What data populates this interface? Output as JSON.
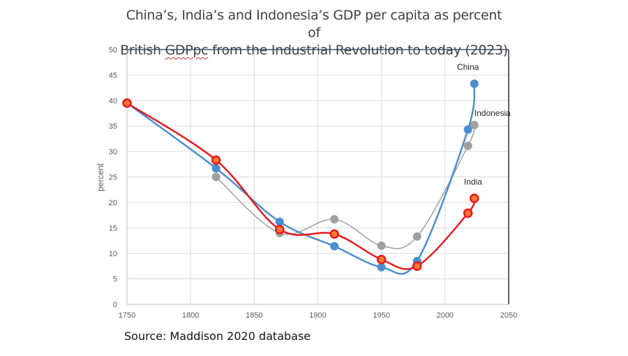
{
  "chart_data": {
    "type": "line",
    "title_line1": "China’s, India’s and Indonesia’s GDP per capita as percent of",
    "title_line2_pre": "British ",
    "title_line2_underlined": "GDPpc",
    "title_line2_post": " from the Industrial Revolution to today (2023)",
    "xlabel": "",
    "ylabel": "percent",
    "xlim": [
      1750,
      2050
    ],
    "ylim": [
      0,
      50
    ],
    "xticks": [
      1750,
      1800,
      1850,
      1900,
      1950,
      2000,
      2050
    ],
    "yticks": [
      0,
      5,
      10,
      15,
      20,
      25,
      30,
      35,
      40,
      45,
      50
    ],
    "grid": true,
    "legend": "none (direct labels at top-right)",
    "series": [
      {
        "name": "China",
        "color": "#4a8fcf",
        "x": [
          1750,
          1820,
          1870,
          1913,
          1950,
          1978,
          2018,
          2023
        ],
        "values": [
          39.5,
          26.7,
          16.2,
          11.4,
          7.3,
          8.5,
          34.3,
          43.3
        ]
      },
      {
        "name": "Indonesia",
        "color": "#a0a0a0",
        "x": [
          1820,
          1870,
          1913,
          1950,
          1978,
          2018,
          2023
        ],
        "values": [
          25.0,
          14.0,
          16.7,
          11.5,
          13.3,
          31.1,
          35.2
        ]
      },
      {
        "name": "India",
        "color": "#e8191e",
        "x": [
          1750,
          1820,
          1870,
          1913,
          1950,
          1978,
          2018,
          2023
        ],
        "values": [
          39.5,
          28.3,
          14.7,
          13.8,
          8.8,
          7.5,
          17.9,
          20.8
        ]
      }
    ],
    "annotations": [
      {
        "text": "China",
        "x": 2018,
        "y": 46
      },
      {
        "text": "Indonesia",
        "x": 2027,
        "y": 37
      },
      {
        "text": "India",
        "x": 2022,
        "y": 23.5
      }
    ],
    "source": "Source: Maddison 2020 database"
  }
}
